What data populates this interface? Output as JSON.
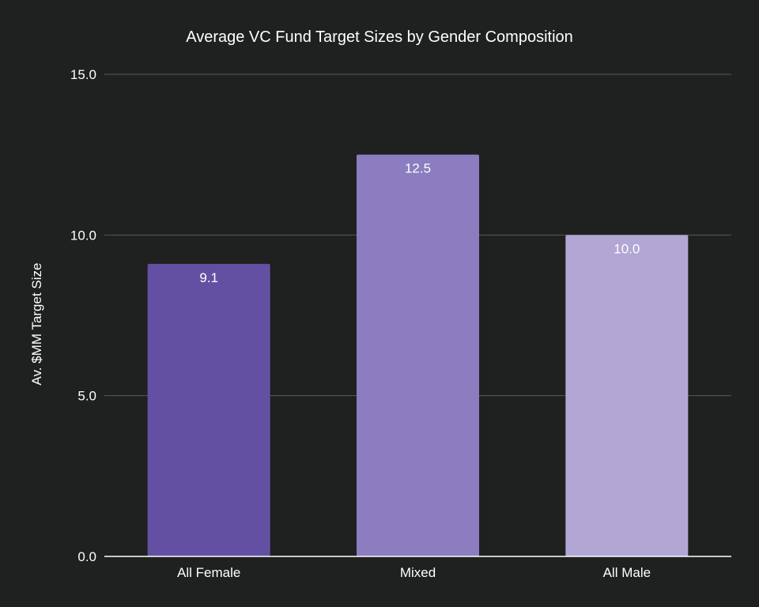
{
  "chart_data": {
    "type": "bar",
    "title": "Average VC Fund Target Sizes by Gender Composition",
    "xlabel": "",
    "ylabel": "Av. $MM Target Size",
    "categories": [
      "All Female",
      "Mixed",
      "All Male"
    ],
    "values": [
      9.1,
      12.5,
      10.0
    ],
    "data_labels": [
      "9.1",
      "12.5",
      "10.0"
    ],
    "ylim": [
      0,
      15
    ],
    "yticks": [
      0,
      5,
      10,
      15
    ],
    "ytick_labels": [
      "0.0",
      "5.0",
      "10.0",
      "15.0"
    ],
    "grid": true,
    "legend": "none",
    "bar_colors": [
      "#6450a3",
      "#8c7dc0",
      "#b2a6d5"
    ],
    "background_color": "#1f2020",
    "grid_color": "#5a5a5a",
    "baseline_color": "#ffffff",
    "text_color": "#ffffff"
  }
}
